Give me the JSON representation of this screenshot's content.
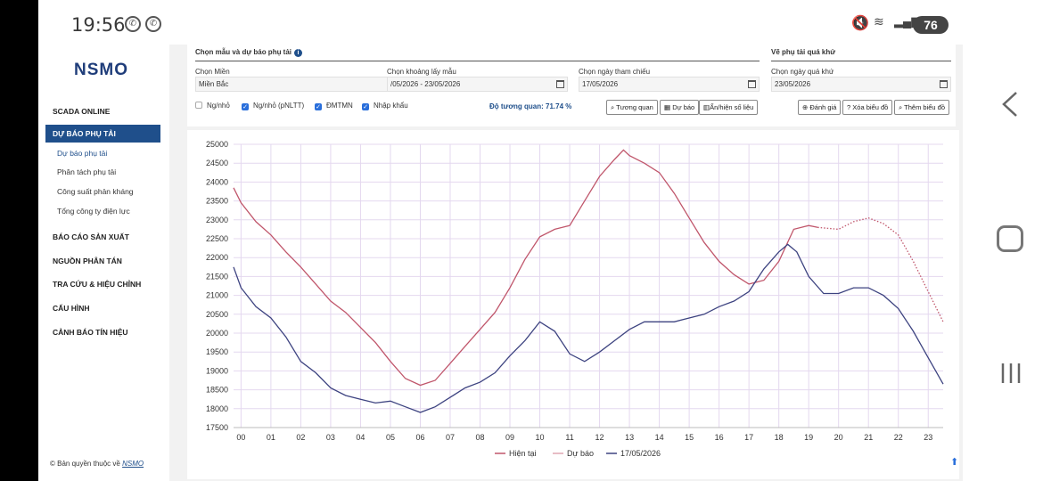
{
  "status_bar": {
    "time": "19:56",
    "battery": "76",
    "app_icons": [
      "viber-icon",
      "viber-icon"
    ]
  },
  "sidebar": {
    "logo_text": "NSMO",
    "sections": [
      {
        "label": "SCADA ONLINE"
      },
      {
        "label": "DỰ BÁO PHỤ TẢI",
        "active": true
      },
      {
        "label": "BÁO CÁO SẢN XUẤT"
      },
      {
        "label": "NGUỒN PHÂN TÁN"
      },
      {
        "label": "TRA CỨU & HIỆU CHỈNH"
      },
      {
        "label": "CẤU HÌNH"
      },
      {
        "label": "CẢNH BÁO TÍN HIỆU"
      }
    ],
    "submenu": [
      {
        "label": "Dự báo phụ tải",
        "current": true
      },
      {
        "label": "Phân tách phụ tải"
      },
      {
        "label": "Công suất phản kháng"
      },
      {
        "label": "Tổng công ty điện lực"
      }
    ],
    "copyright_prefix": "© Bản quyền thuộc về",
    "copyright_link": "NSMO"
  },
  "form": {
    "sample_group_title": "Chọn mẫu và dự báo phụ tải",
    "past_group_title": "Vẽ phụ tải quá khứ",
    "region_label": "Chọn Miền",
    "region_value": "Miền Bắc",
    "range_label": "Chọn khoảng lấy mẫu",
    "range_value": "/05/2026 - 23/05/2026",
    "ref_date_label": "Chọn ngày tham chiếu",
    "ref_date_value": "17/05/2026",
    "past_date_label": "Chọn ngày quá khứ",
    "past_date_value": "23/05/2026",
    "checkboxes": [
      {
        "label": "Ng/nhỏ",
        "checked": false
      },
      {
        "label": "Ng/nhỏ (pNLTT)",
        "checked": true
      },
      {
        "label": "ĐMTMN",
        "checked": true
      },
      {
        "label": "Nhập khẩu",
        "checked": true
      }
    ],
    "correlation": "Độ tương quan: 71.74 %",
    "buttons": {
      "correlate": "Tương quan",
      "forecast": "Dự báo",
      "toggle_data": "Ẩn/hiện số liệu",
      "evaluate": "Đánh giá",
      "clear_chart": "Xóa biểu đồ",
      "add_chart": "Thêm biểu đồ"
    }
  },
  "chart_data": {
    "type": "line",
    "title": "",
    "xlabel": "",
    "ylabel": "",
    "ylim": [
      17500,
      25000
    ],
    "y_ticks": [
      "25000",
      "24500",
      "24000",
      "23500",
      "23000",
      "22500",
      "22000",
      "21500",
      "21000",
      "20500",
      "20000",
      "19500",
      "19000",
      "18500",
      "18000",
      "17500"
    ],
    "x_ticks": [
      "00",
      "01",
      "02",
      "03",
      "04",
      "05",
      "06",
      "07",
      "08",
      "09",
      "10",
      "11",
      "12",
      "13",
      "14",
      "15",
      "16",
      "17",
      "18",
      "19",
      "20",
      "21",
      "22",
      "23"
    ],
    "xlim": [
      -0.25,
      23.5
    ],
    "grid": true,
    "legend_position": "bottom",
    "series": [
      {
        "name": "Hiện tại",
        "color": "#c0566b",
        "style": "solid",
        "points": [
          [
            -0.25,
            23850
          ],
          [
            0,
            23450
          ],
          [
            0.5,
            22950
          ],
          [
            1,
            22600
          ],
          [
            1.5,
            22150
          ],
          [
            2,
            21750
          ],
          [
            2.5,
            21300
          ],
          [
            3,
            20850
          ],
          [
            3.5,
            20550
          ],
          [
            4,
            20150
          ],
          [
            4.5,
            19750
          ],
          [
            5,
            19250
          ],
          [
            5.5,
            18800
          ],
          [
            6,
            18620
          ],
          [
            6.5,
            18750
          ],
          [
            7,
            19200
          ],
          [
            7.5,
            19650
          ],
          [
            8,
            20100
          ],
          [
            8.5,
            20550
          ],
          [
            9,
            21200
          ],
          [
            9.5,
            21950
          ],
          [
            10,
            22550
          ],
          [
            10.5,
            22750
          ],
          [
            11,
            22850
          ],
          [
            11.5,
            23500
          ],
          [
            12,
            24150
          ],
          [
            12.5,
            24600
          ],
          [
            12.8,
            24850
          ],
          [
            13,
            24700
          ],
          [
            13.5,
            24500
          ],
          [
            14,
            24250
          ],
          [
            14.5,
            23700
          ],
          [
            15,
            23050
          ],
          [
            15.5,
            22400
          ],
          [
            16,
            21900
          ],
          [
            16.5,
            21550
          ],
          [
            17,
            21300
          ],
          [
            17.5,
            21400
          ],
          [
            18,
            21900
          ],
          [
            18.5,
            22750
          ],
          [
            19,
            22850
          ],
          [
            19.3,
            22800
          ]
        ]
      },
      {
        "name": "Dự báo",
        "color": "#c0566b",
        "style": "dotted",
        "points": [
          [
            19.3,
            22800
          ],
          [
            20,
            22750
          ],
          [
            20.5,
            22950
          ],
          [
            21,
            23050
          ],
          [
            21.5,
            22900
          ],
          [
            22,
            22600
          ],
          [
            22.5,
            21900
          ],
          [
            23,
            21100
          ],
          [
            23.5,
            20300
          ]
        ]
      },
      {
        "name": "17/05/2026",
        "color": "#3d4380",
        "style": "solid",
        "points": [
          [
            -0.25,
            21750
          ],
          [
            0,
            21200
          ],
          [
            0.5,
            20700
          ],
          [
            1,
            20400
          ],
          [
            1.5,
            19900
          ],
          [
            2,
            19250
          ],
          [
            2.5,
            18950
          ],
          [
            3,
            18550
          ],
          [
            3.5,
            18350
          ],
          [
            4,
            18250
          ],
          [
            4.5,
            18150
          ],
          [
            5,
            18200
          ],
          [
            5.5,
            18050
          ],
          [
            6,
            17900
          ],
          [
            6.5,
            18050
          ],
          [
            7,
            18300
          ],
          [
            7.5,
            18550
          ],
          [
            8,
            18700
          ],
          [
            8.5,
            18950
          ],
          [
            9,
            19400
          ],
          [
            9.5,
            19800
          ],
          [
            10,
            20300
          ],
          [
            10.5,
            20050
          ],
          [
            11,
            19450
          ],
          [
            11.5,
            19250
          ],
          [
            12,
            19500
          ],
          [
            12.5,
            19800
          ],
          [
            13,
            20100
          ],
          [
            13.5,
            20300
          ],
          [
            14,
            20300
          ],
          [
            14.5,
            20300
          ],
          [
            15,
            20400
          ],
          [
            15.5,
            20500
          ],
          [
            16,
            20700
          ],
          [
            16.5,
            20850
          ],
          [
            17,
            21100
          ],
          [
            17.5,
            21700
          ],
          [
            18,
            22150
          ],
          [
            18.3,
            22350
          ],
          [
            18.6,
            22150
          ],
          [
            19,
            21500
          ],
          [
            19.5,
            21050
          ],
          [
            20,
            21050
          ],
          [
            20.5,
            21200
          ],
          [
            21,
            21200
          ],
          [
            21.5,
            21000
          ],
          [
            22,
            20650
          ],
          [
            22.5,
            20050
          ],
          [
            23,
            19350
          ],
          [
            23.5,
            18650
          ]
        ]
      }
    ]
  }
}
